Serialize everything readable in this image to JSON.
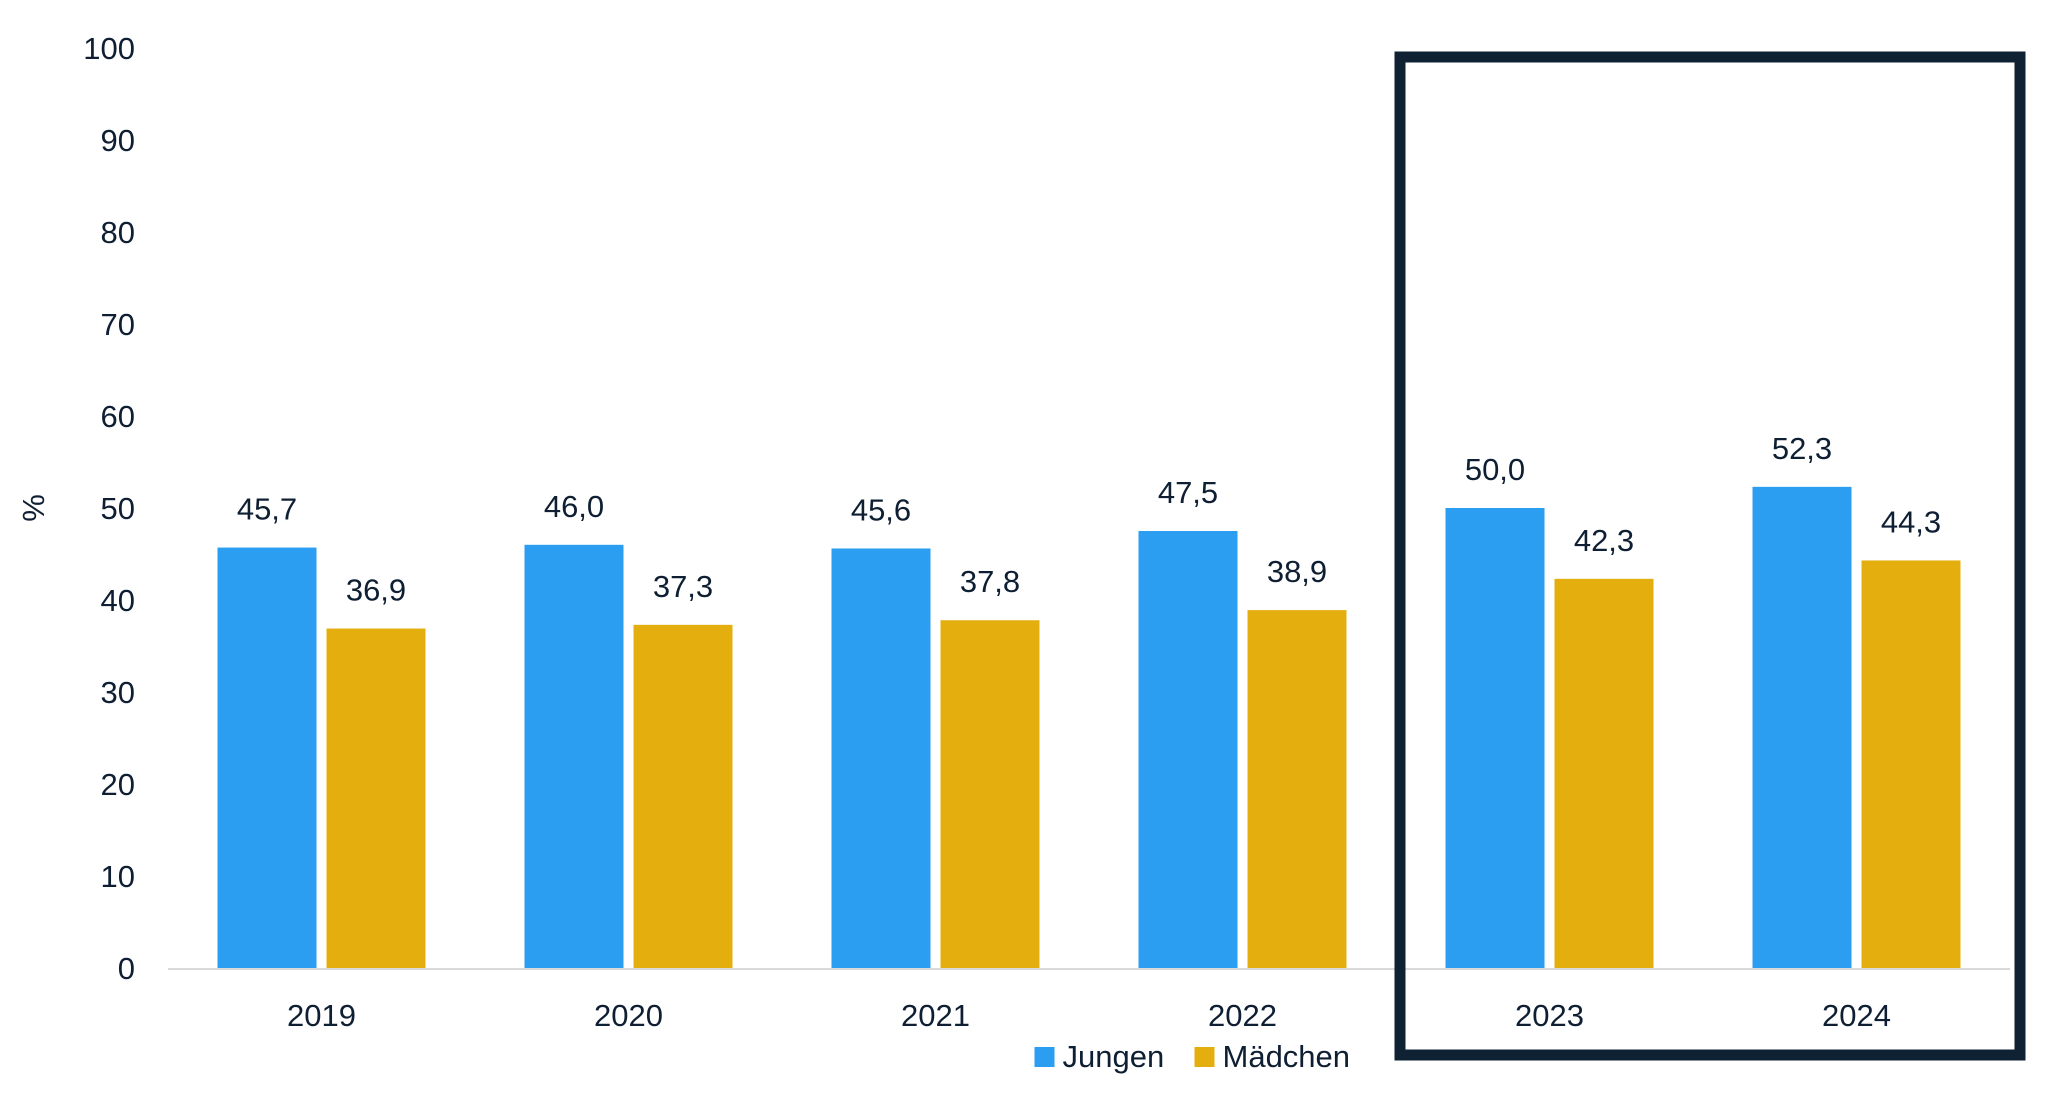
{
  "chart_data": {
    "type": "bar",
    "categories": [
      "2019",
      "2020",
      "2021",
      "2022",
      "2023",
      "2024"
    ],
    "series": [
      {
        "name": "Jungen",
        "color": "#2b9ef2",
        "values": [
          45.7,
          46.0,
          45.6,
          47.5,
          50.0,
          52.3
        ],
        "labels": [
          "45,7",
          "46,0",
          "45,6",
          "47,5",
          "50,0",
          "52,3"
        ]
      },
      {
        "name": "Mädchen",
        "color": "#e4af0e",
        "values": [
          36.9,
          37.3,
          37.8,
          38.9,
          42.3,
          44.3
        ],
        "labels": [
          "36,9",
          "37,3",
          "37,8",
          "38,9",
          "42,3",
          "44,3"
        ]
      }
    ],
    "ylabel": "%",
    "ylim": [
      0,
      100
    ],
    "yticks": [
      0,
      10,
      20,
      30,
      40,
      50,
      60,
      70,
      80,
      90,
      100
    ],
    "grid": false,
    "legend_position": "bottom",
    "highlight": {
      "categories": [
        "2023",
        "2024"
      ],
      "frame_color": "#0f2233"
    }
  }
}
